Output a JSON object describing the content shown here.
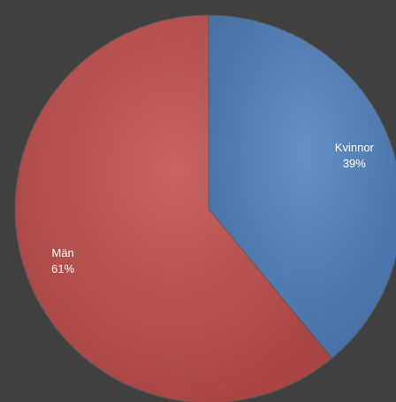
{
  "chart_data": {
    "type": "pie",
    "categories": [
      "Kvinnor",
      "Män"
    ],
    "values": [
      39,
      61
    ],
    "value_labels": [
      "39%",
      "61%"
    ],
    "colors": [
      "#4f81bd",
      "#c0504d"
    ]
  }
}
